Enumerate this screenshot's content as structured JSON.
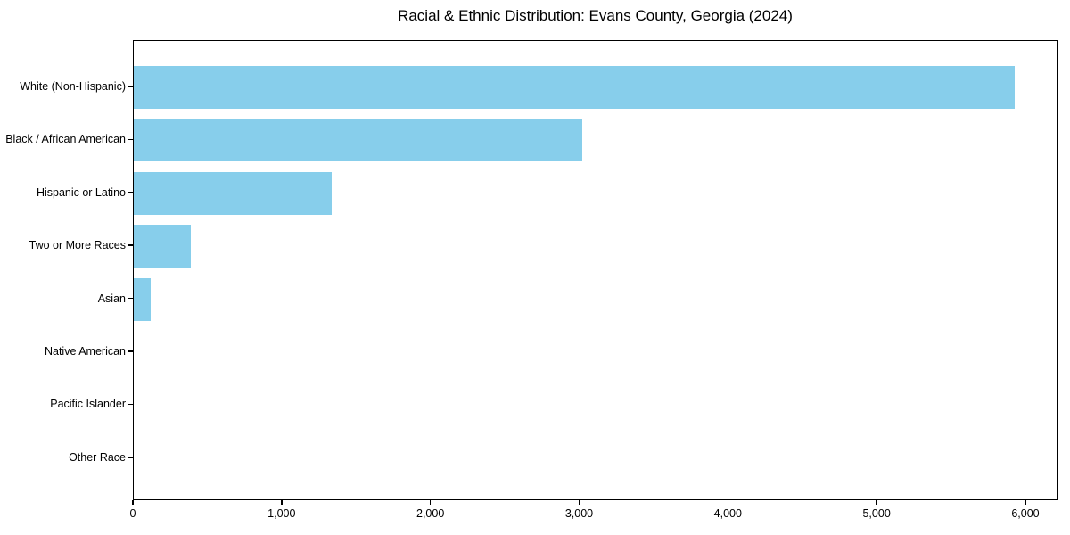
{
  "chart_data": {
    "type": "bar",
    "orientation": "horizontal",
    "title": "Racial & Ethnic Distribution: Evans County, Georgia (2024)",
    "categories": [
      "White (Non-Hispanic)",
      "Black / African American",
      "Hispanic or Latino",
      "Two or More Races",
      "Asian",
      "Native American",
      "Pacific Islander",
      "Other Race"
    ],
    "values": [
      5920,
      3015,
      1330,
      385,
      115,
      0,
      0,
      0
    ],
    "xlabel": "",
    "ylabel": "",
    "xlim": [
      0,
      6216
    ],
    "x_ticks": [
      0,
      1000,
      2000,
      3000,
      4000,
      5000,
      6000
    ],
    "x_tick_labels": [
      "0",
      "1,000",
      "2,000",
      "3,000",
      "4,000",
      "5,000",
      "6,000"
    ],
    "bar_color": "#87CEEB",
    "background_color": "#FFFFFF",
    "spine_color": "#000000",
    "text_color": "#000000",
    "grid": false,
    "legend": "none"
  }
}
